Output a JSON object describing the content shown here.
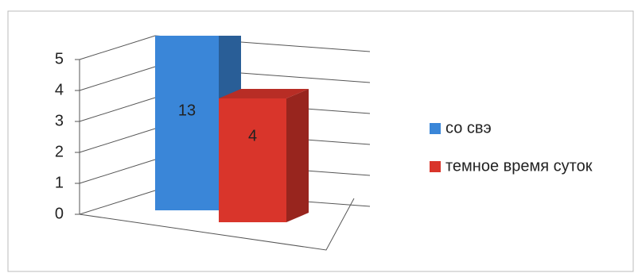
{
  "chart_data": {
    "type": "bar3d",
    "categories": [
      null
    ],
    "series": [
      {
        "name": "со свэ",
        "color": "#3a86d8",
        "values": [
          13
        ]
      },
      {
        "name": "темное время суток",
        "color": "#d9352b",
        "values": [
          4
        ]
      }
    ],
    "ylim": [
      0,
      5
    ],
    "yticks": [
      0,
      1,
      2,
      3,
      4,
      5
    ],
    "grid": true,
    "legend": "right"
  }
}
